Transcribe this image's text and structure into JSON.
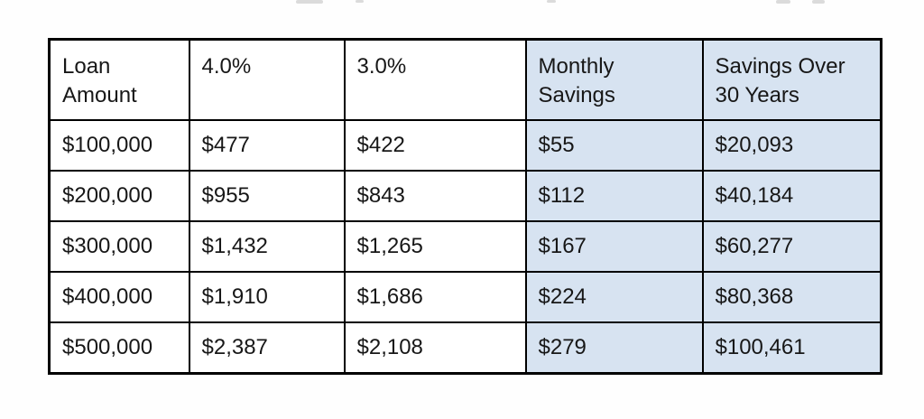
{
  "chart_data": {
    "type": "table",
    "title": "",
    "columns": [
      {
        "label": "Loan Amount",
        "highlighted": false
      },
      {
        "label": "4.0%",
        "highlighted": false
      },
      {
        "label": "3.0%",
        "highlighted": false
      },
      {
        "label": "Monthly Savings",
        "highlighted": true
      },
      {
        "label": "Savings Over 30 Years",
        "highlighted": true
      }
    ],
    "rows": [
      [
        "$100,000",
        "$477",
        "$422",
        "$55",
        "$20,093"
      ],
      [
        "$200,000",
        "$955",
        "$843",
        "$112",
        "$40,184"
      ],
      [
        "$300,000",
        "$1,432",
        "$1,265",
        "$167",
        "$60,277"
      ],
      [
        "$400,000",
        "$1,910",
        "$1,686",
        "$224",
        "$80,368"
      ],
      [
        "$500,000",
        "$2,387",
        "$2,108",
        "$279",
        "$100,461"
      ]
    ],
    "layout_hints": {
      "highlighted_columns": [
        "Monthly Savings",
        "Savings Over 30 Years"
      ],
      "grid": true
    }
  },
  "colors": {
    "highlight_bg": "#d7e3f1",
    "border": "#000000",
    "text": "#171717",
    "page_bg": "#fefefe"
  }
}
